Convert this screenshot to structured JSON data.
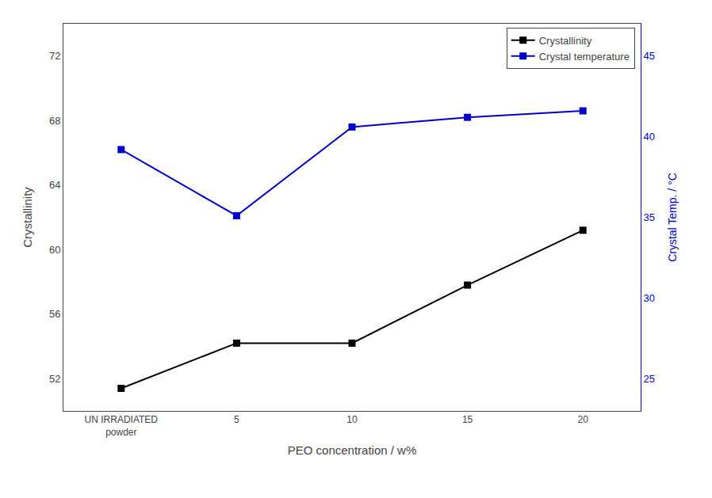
{
  "chart_data": {
    "type": "line",
    "categories": [
      "UN IRRADIATED\npowder",
      "5",
      "10",
      "15",
      "20"
    ],
    "xlabel": "PEO concentration / w%",
    "ylabel": "Crystallinity",
    "y2label": "Crystal Temp. / °C",
    "series": [
      {
        "name": "Crystallinity",
        "color": "#000000",
        "marker": "square",
        "values": [
          51.4,
          54.2,
          54.2,
          57.8,
          61.2
        ]
      },
      {
        "name": "Crystal temperature",
        "color": "#0000cc",
        "marker": "square",
        "axis": "y2",
        "values": [
          39.2,
          35.1,
          40.6,
          41.2,
          41.6
        ]
      }
    ],
    "ylim": [
      50,
      74
    ],
    "yticks": [
      52,
      56,
      60,
      64,
      68,
      72
    ],
    "y2lim": [
      23,
      47
    ],
    "y2ticks": [
      25,
      30,
      35,
      40,
      45
    ],
    "grid": false,
    "legend": "upper right"
  }
}
